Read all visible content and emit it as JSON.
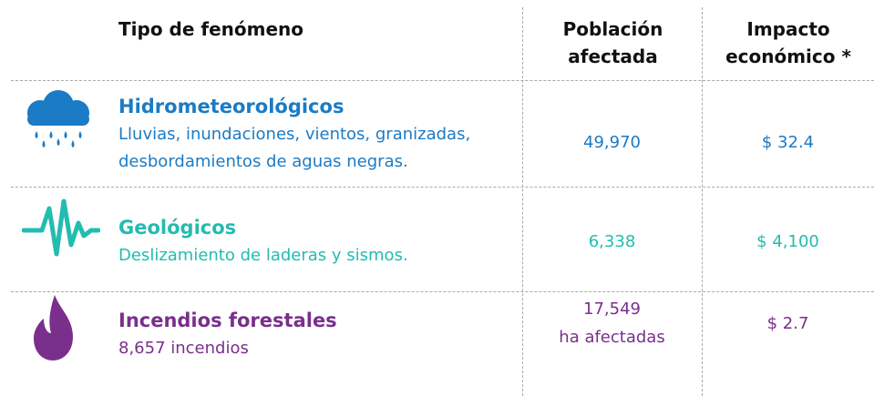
{
  "table": {
    "headers": [
      "Tipo de fenómeno",
      "Población afectada",
      "Impacto económico *"
    ],
    "rows": [
      {
        "title": "Hidrometeorológicos",
        "description": "Lluvias, inundaciones, vientos, granizadas, desbordamientos de aguas negras.",
        "population": "49,970",
        "impact": "$ 32.4"
      },
      {
        "title": "Geológicos",
        "description": "Deslizamiento de laderas y sismos.",
        "population": "6,338",
        "impact": "$ 4,100"
      },
      {
        "title": "Incendios forestales",
        "description": "8,657 incendios",
        "population": "17,549",
        "population_note": "ha afectadas",
        "impact": "$ 2.7"
      }
    ]
  }
}
